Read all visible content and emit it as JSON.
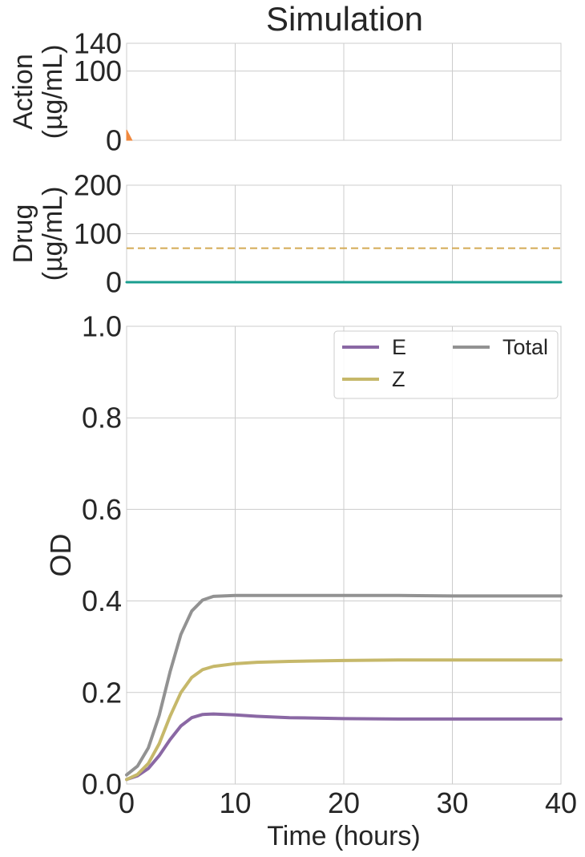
{
  "chart_data": [
    {
      "type": "area",
      "title": "Simulation",
      "ylabel": [
        "Action",
        "(µg/mL)"
      ],
      "xlim": [
        0,
        40
      ],
      "ylim": [
        0,
        140
      ],
      "yticks": [
        0,
        100,
        140
      ],
      "grid": true,
      "xticks_visible": false,
      "series": [
        {
          "color": "#f0883e",
          "x": [
            0,
            0.5
          ],
          "values": [
            15,
            0
          ]
        }
      ]
    },
    {
      "type": "line",
      "ylabel": [
        "Drug",
        "(µg/mL)"
      ],
      "xlim": [
        0,
        40
      ],
      "ylim": [
        0,
        200
      ],
      "yticks": [
        0,
        100,
        200
      ],
      "grid": true,
      "xticks_visible": false,
      "series": [
        {
          "color": "#1a9e8f",
          "style": "solid",
          "x": [
            0,
            40
          ],
          "values": [
            0,
            0
          ]
        }
      ],
      "reference_lines": [
        {
          "color": "#d4aa55",
          "style": "dashed",
          "y": 70
        }
      ]
    },
    {
      "type": "line",
      "xlabel": "Time (hours)",
      "ylabel": "OD",
      "xlim": [
        0,
        40
      ],
      "ylim": [
        0,
        1.0
      ],
      "xticks": [
        0,
        10,
        20,
        30,
        40
      ],
      "yticks": [
        "0.0",
        "0.2",
        "0.4",
        "0.6",
        "0.8",
        "1.0"
      ],
      "grid": true,
      "legend": {
        "placement": "top-right",
        "columns": 2
      },
      "series": [
        {
          "name": "E",
          "color": "#8a68a4",
          "x": [
            0,
            1,
            2,
            3,
            4,
            5,
            6,
            7,
            8,
            10,
            12,
            15,
            20,
            25,
            30,
            35,
            40
          ],
          "values": [
            0.01,
            0.018,
            0.034,
            0.062,
            0.097,
            0.127,
            0.145,
            0.152,
            0.153,
            0.151,
            0.148,
            0.145,
            0.143,
            0.142,
            0.142,
            0.142,
            0.142
          ]
        },
        {
          "name": "Z",
          "color": "#c6b86a",
          "x": [
            0,
            1,
            2,
            3,
            4,
            5,
            6,
            7,
            8,
            10,
            12,
            15,
            20,
            25,
            30,
            35,
            40
          ],
          "values": [
            0.01,
            0.021,
            0.045,
            0.088,
            0.148,
            0.2,
            0.233,
            0.25,
            0.257,
            0.263,
            0.266,
            0.268,
            0.27,
            0.271,
            0.271,
            0.271,
            0.271
          ]
        },
        {
          "name": "Total",
          "color": "#929292",
          "x": [
            0,
            1,
            2,
            3,
            4,
            5,
            6,
            7,
            8,
            10,
            12,
            15,
            20,
            25,
            30,
            35,
            40
          ],
          "values": [
            0.02,
            0.039,
            0.079,
            0.15,
            0.245,
            0.327,
            0.378,
            0.402,
            0.41,
            0.412,
            0.412,
            0.412,
            0.412,
            0.412,
            0.411,
            0.411,
            0.411
          ]
        }
      ]
    }
  ]
}
